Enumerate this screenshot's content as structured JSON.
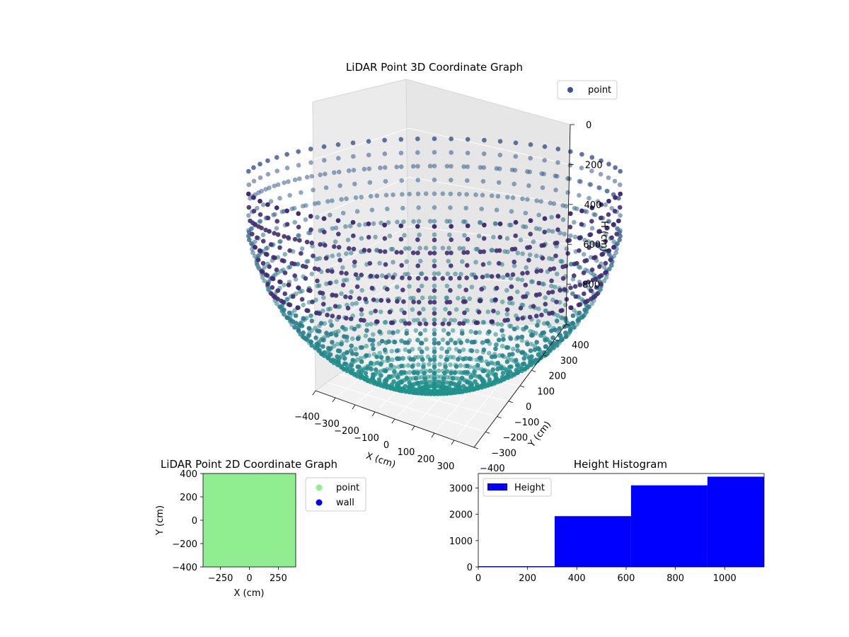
{
  "colors": {
    "point_3d_low": "#440154",
    "point_3d_mid": "#3b528b",
    "point_3d_high": "#21918c",
    "point_2d": "#90ee90",
    "wall_2d": "#0000ff",
    "histogram_bar": "#0000ff",
    "pane": "#f2f2f2"
  },
  "chart_data": [
    {
      "type": "scatter",
      "projection": "3d",
      "title": "LiDAR Point 3D Coordinate Graph",
      "xlabel": "X (cm)",
      "ylabel": "Y (cm)",
      "zlabel": "H (cm)",
      "xlim": [
        -400,
        400
      ],
      "ylim": [
        -400,
        400
      ],
      "zlim": [
        0,
        1000
      ],
      "z_inverted": true,
      "x_ticks": [
        "−400",
        "−300",
        "−200",
        "−100",
        "0",
        "100",
        "200",
        "300"
      ],
      "y_ticks": [
        "−400",
        "−300",
        "−200",
        "−100",
        "0",
        "100",
        "200",
        "300",
        "400"
      ],
      "z_ticks": [
        "0",
        "200",
        "400",
        "600",
        "800"
      ],
      "series": [
        {
          "name": "point",
          "shape": "hemisphere",
          "rings": 12,
          "points_per_ring": 72,
          "depth_max": 1000
        }
      ],
      "legend": {
        "position": "top-right",
        "entries": [
          "point"
        ]
      },
      "grid": true
    },
    {
      "type": "scatter",
      "title": "LiDAR Point 2D Coordinate Graph",
      "xlabel": "X (cm)",
      "ylabel": "Y (cm)",
      "xlim": [
        -400,
        400
      ],
      "ylim": [
        -400,
        400
      ],
      "x_ticks": [
        "−250",
        "0",
        "250"
      ],
      "y_ticks": [
        "400",
        "200",
        "0",
        "−200",
        "−400"
      ],
      "series": [
        {
          "name": "point",
          "fill_region": [
            [
              -400,
              400
            ],
            [
              -400,
              400
            ]
          ]
        },
        {
          "name": "wall",
          "values": []
        }
      ],
      "legend": {
        "position": "outside-right",
        "entries": [
          "point",
          "wall"
        ]
      }
    },
    {
      "type": "bar",
      "subtype": "histogram",
      "title": "Height Histogram",
      "xlabel": "",
      "ylabel": "",
      "xlim": [
        0,
        1160
      ],
      "ylim": [
        0,
        3550
      ],
      "x_ticks": [
        "0",
        "200",
        "400",
        "600",
        "800",
        "1000"
      ],
      "y_ticks": [
        "0",
        "1000",
        "2000",
        "3000"
      ],
      "bins": [
        {
          "from": 0,
          "to": 310,
          "count": 0
        },
        {
          "from": 310,
          "to": 620,
          "count": 1930
        },
        {
          "from": 620,
          "to": 930,
          "count": 3100
        },
        {
          "from": 930,
          "to": 1160,
          "count": 3430
        }
      ],
      "series": [
        {
          "name": "Height"
        }
      ],
      "legend": {
        "position": "top-left",
        "entries": [
          "Height"
        ]
      }
    }
  ]
}
